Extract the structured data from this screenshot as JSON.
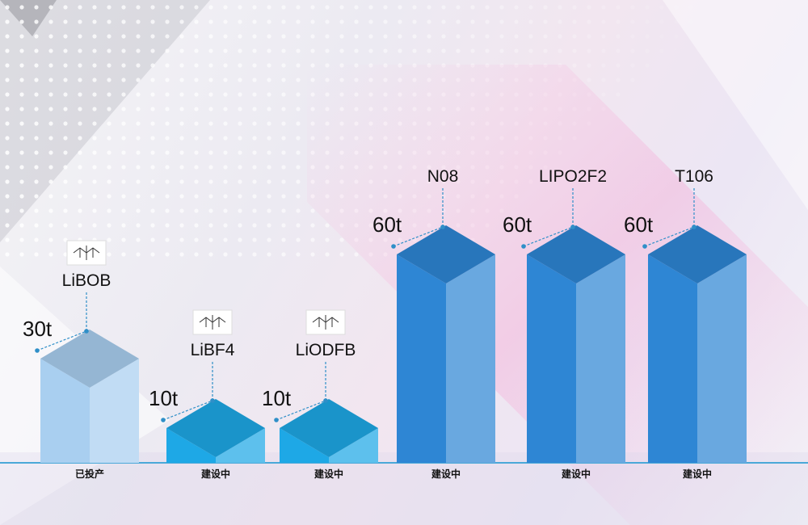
{
  "chart_data": {
    "type": "bar",
    "title": "",
    "xlabel": "",
    "ylabel": "",
    "unit": "t",
    "bars": [
      {
        "label": "LiBOB",
        "value": 30,
        "value_label": "30t",
        "status": "已投产",
        "color": "#a9cff0",
        "has_structure": true
      },
      {
        "label": "LiBF4",
        "value": 10,
        "value_label": "10t",
        "status": "建设中",
        "color": "#1ea8e6",
        "has_structure": true
      },
      {
        "label": "LiODFB",
        "value": 10,
        "value_label": "10t",
        "status": "建设中",
        "color": "#1ea8e6",
        "has_structure": true
      },
      {
        "label": "N08",
        "value": 60,
        "value_label": "60t",
        "status": "建设中",
        "color": "#2e86d4",
        "has_structure": false
      },
      {
        "label": "LIPO2F2",
        "value": 60,
        "value_label": "60t",
        "status": "建设中",
        "color": "#2e86d4",
        "has_structure": false
      },
      {
        "label": "T106",
        "value": 60,
        "value_label": "60t",
        "status": "建设中",
        "color": "#2e86d4",
        "has_structure": false
      }
    ]
  }
}
